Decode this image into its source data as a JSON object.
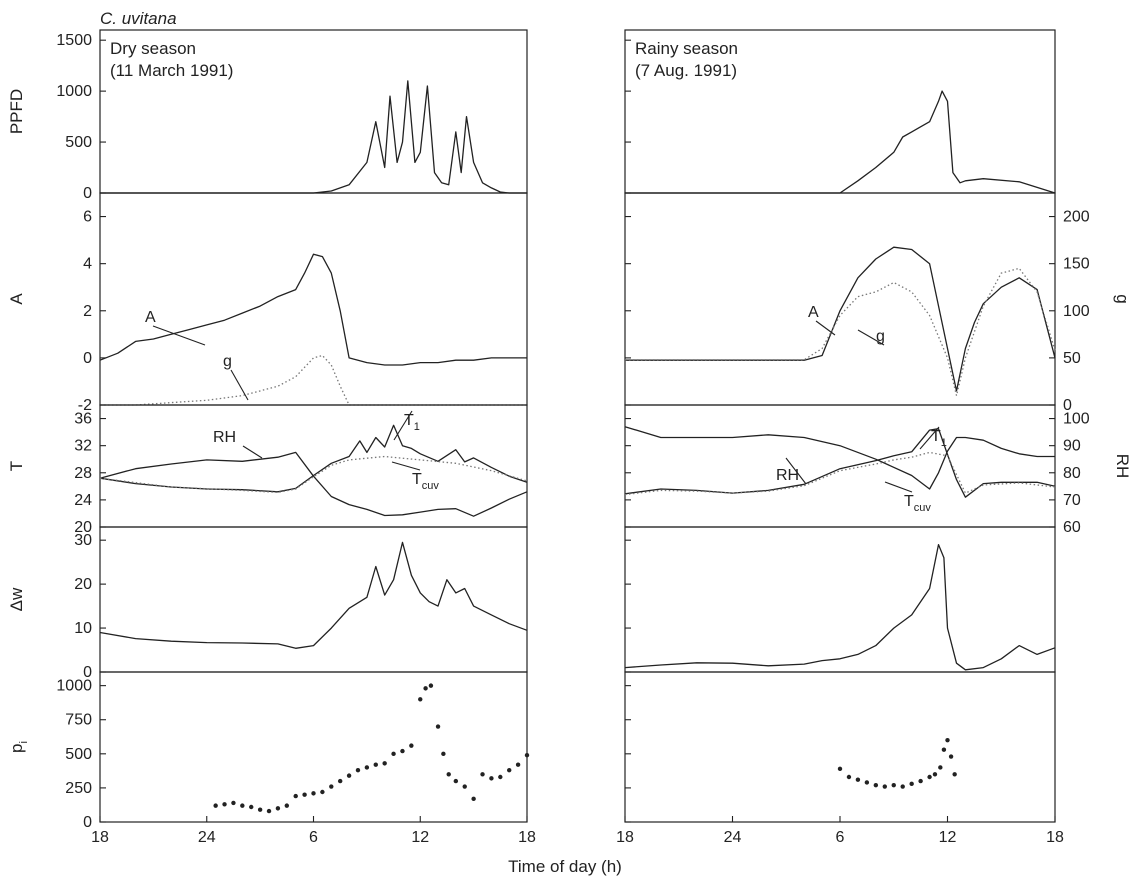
{
  "figure": {
    "species": "C. uvitana",
    "xlabel": "Time of day (h)"
  },
  "chart_data": [
    {
      "type": "line",
      "panel_title": "Dry season",
      "panel_subtitle": "(11 March 1991)",
      "x_ticks": [
        "18",
        "24",
        "6",
        "12",
        "18"
      ],
      "rows": [
        {
          "ylabel": "PPFD",
          "ylim": [
            0,
            1600
          ],
          "yticks": [
            0,
            500,
            1000,
            1500
          ],
          "series": [
            {
              "style": "solid",
              "x": [
                0,
                10,
                11,
                12,
                13,
                14,
                15,
                15.5,
                16,
                16.3,
                16.7,
                17,
                17.3,
                17.7,
                18,
                18.4,
                18.8,
                19.2,
                19.6,
                20,
                20.3,
                20.6,
                21,
                21.5,
                22,
                22.5,
                23,
                23.5,
                24
              ],
              "y": [
                0,
                0,
                0,
                0,
                20,
                80,
                300,
                700,
                250,
                950,
                300,
                500,
                1100,
                300,
                400,
                1050,
                200,
                100,
                80,
                600,
                200,
                750,
                300,
                100,
                50,
                10,
                0,
                0,
                0
              ]
            }
          ]
        },
        {
          "ylabel": "A",
          "ylim": [
            -2,
            7
          ],
          "yticks": [
            -2,
            0,
            2,
            4,
            6
          ],
          "annotations": [
            "A",
            "g"
          ],
          "series": [
            {
              "name": "A",
              "style": "solid",
              "x": [
                0,
                1,
                2,
                3,
                4,
                5,
                6,
                7,
                8,
                9,
                10,
                11,
                11.5,
                12,
                12.5,
                13,
                13.5,
                14,
                15,
                16,
                17,
                18,
                19,
                20,
                21,
                22,
                23,
                24
              ],
              "y": [
                -0.1,
                0.2,
                0.7,
                0.8,
                1.0,
                1.2,
                1.4,
                1.6,
                1.9,
                2.2,
                2.6,
                2.9,
                3.6,
                4.4,
                4.3,
                3.6,
                2.0,
                0.0,
                -0.2,
                -0.3,
                -0.3,
                -0.2,
                -0.2,
                -0.1,
                -0.1,
                0.0,
                0.0,
                0.0
              ]
            },
            {
              "name": "g",
              "style": "dotted",
              "x": [
                0,
                2,
                4,
                6,
                8,
                10,
                11,
                12,
                12.5,
                13,
                13.5,
                14,
                15,
                16,
                18,
                20,
                22,
                24
              ],
              "y": [
                -2.0,
                -2.0,
                -1.9,
                -1.8,
                -1.6,
                -1.2,
                -0.8,
                0.0,
                0.1,
                -0.3,
                -1.2,
                -2.0,
                -2.0,
                -2.0,
                -2.0,
                -2.0,
                -2.0,
                -2.0
              ]
            }
          ]
        },
        {
          "ylabel": "T",
          "ylim": [
            20,
            38
          ],
          "yticks": [
            20,
            24,
            28,
            32,
            36
          ],
          "annotations": [
            "RH",
            "T1",
            "Tcuv"
          ],
          "series": [
            {
              "name": "RH",
              "style": "solid",
              "x": [
                0,
                2,
                4,
                6,
                8,
                10,
                11,
                12,
                13,
                14,
                15,
                16,
                17,
                18,
                19,
                20,
                21,
                22,
                23,
                24
              ],
              "y": [
                27.2,
                28.6,
                29.3,
                29.9,
                29.7,
                30.3,
                31.0,
                27.5,
                24.5,
                23.3,
                22.6,
                21.7,
                21.8,
                22.2,
                22.6,
                22.7,
                21.6,
                22.8,
                24.1,
                25.2
              ]
            },
            {
              "name": "T1",
              "style": "solid",
              "x": [
                0,
                2,
                4,
                6,
                8,
                10,
                11,
                12,
                13,
                14,
                14.6,
                15,
                15.5,
                16,
                16.5,
                17,
                17.5,
                18,
                19,
                20,
                20.5,
                21,
                22,
                23,
                24
              ],
              "y": [
                27.2,
                26.4,
                25.9,
                25.6,
                25.5,
                25.2,
                25.7,
                27.6,
                29.4,
                30.4,
                32.7,
                31.0,
                33.2,
                31.8,
                35.0,
                32.0,
                31.6,
                30.8,
                29.7,
                31.4,
                29.6,
                30.2,
                28.8,
                27.5,
                26.6
              ]
            },
            {
              "name": "Tcuv",
              "style": "dotted",
              "x": [
                0,
                4,
                8,
                10,
                11,
                12,
                13,
                14,
                16,
                18,
                20,
                22,
                24
              ],
              "y": [
                27.2,
                25.9,
                25.4,
                25.1,
                25.6,
                27.4,
                29.1,
                29.9,
                30.4,
                29.9,
                29.4,
                28.3,
                26.8
              ]
            }
          ]
        },
        {
          "ylabel": "Δw",
          "ylim": [
            0,
            33
          ],
          "yticks": [
            0,
            10,
            20,
            30
          ],
          "series": [
            {
              "style": "solid",
              "x": [
                0,
                2,
                4,
                6,
                8,
                10,
                11,
                12,
                13,
                14,
                15,
                15.5,
                16,
                16.5,
                17,
                17.5,
                18,
                18.5,
                19,
                19.5,
                20,
                20.5,
                21,
                22,
                23,
                24
              ],
              "y": [
                9.0,
                7.6,
                7.0,
                6.7,
                6.6,
                6.4,
                5.4,
                6.0,
                10.0,
                14.5,
                17.0,
                24.0,
                17.5,
                21.0,
                29.5,
                22.0,
                18.0,
                16.0,
                15.0,
                21.0,
                18.0,
                19.0,
                15.0,
                13.0,
                11.0,
                9.5
              ]
            }
          ]
        },
        {
          "ylabel": "pi",
          "ylim": [
            0,
            1100
          ],
          "yticks": [
            0,
            250,
            500,
            750,
            1000
          ],
          "series": [
            {
              "style": "points",
              "x": [
                6.5,
                7,
                7.5,
                8,
                8.5,
                9,
                9.5,
                10,
                10.5,
                11,
                11.5,
                12,
                12.5,
                13,
                13.5,
                14,
                14.5,
                15,
                15.5,
                16,
                16.5,
                17,
                17.5,
                18,
                18.3,
                18.6,
                19,
                19.3,
                19.6,
                20,
                20.5,
                21,
                21.5,
                22,
                22.5,
                23,
                23.5,
                24
              ],
              "y": [
                120,
                130,
                140,
                120,
                110,
                90,
                80,
                100,
                120,
                190,
                200,
                210,
                220,
                260,
                300,
                340,
                380,
                400,
                420,
                430,
                500,
                520,
                560,
                900,
                980,
                1000,
                700,
                500,
                350,
                300,
                260,
                170,
                350,
                320,
                330,
                380,
                420,
                490
              ]
            }
          ]
        }
      ]
    },
    {
      "type": "line",
      "panel_title": "Rainy season",
      "panel_subtitle": "(7 Aug. 1991)",
      "x_ticks": [
        "18",
        "24",
        "6",
        "12",
        "18"
      ],
      "rows": [
        {
          "ylim": [
            0,
            1600
          ],
          "series": [
            {
              "style": "solid",
              "x": [
                0,
                11,
                12,
                13,
                14,
                15,
                15.5,
                16,
                16.5,
                17,
                17.5,
                17.7,
                18,
                18.3,
                18.7,
                19,
                20,
                22,
                24
              ],
              "y": [
                0,
                0,
                0,
                120,
                250,
                400,
                550,
                600,
                650,
                700,
                900,
                1000,
                900,
                200,
                100,
                120,
                140,
                110,
                0
              ]
            }
          ]
        },
        {
          "ylim": [
            -2,
            7
          ],
          "y2label": "g",
          "y2lim": [
            0,
            225
          ],
          "y2ticks": [
            0,
            50,
            100,
            150,
            200
          ],
          "annotations": [
            "A",
            "g"
          ],
          "series": [
            {
              "name": "A",
              "style": "solid",
              "x": [
                0,
                10,
                11,
                12,
                13,
                14,
                15,
                16,
                17,
                18,
                18.5,
                19,
                19.5,
                20,
                21,
                22,
                23,
                24
              ],
              "y": [
                -0.1,
                -0.1,
                0.1,
                2.0,
                3.4,
                4.2,
                4.7,
                4.6,
                4.0,
                0.4,
                -1.4,
                0.4,
                1.5,
                2.3,
                3.0,
                3.4,
                2.9,
                0.0
              ]
            },
            {
              "name": "g",
              "style": "dotted",
              "x": [
                0,
                10,
                11,
                12,
                13,
                14,
                15,
                16,
                17,
                18,
                18.5,
                19,
                20,
                21,
                22,
                23,
                24
              ],
              "y": [
                48,
                48,
                60,
                95,
                115,
                120,
                130,
                120,
                95,
                50,
                10,
                50,
                105,
                140,
                145,
                120,
                58
              ]
            }
          ]
        },
        {
          "ylim": [
            20,
            38
          ],
          "y2label": "RH",
          "y2lim": [
            60,
            105
          ],
          "y2ticks": [
            60,
            70,
            80,
            90,
            100
          ],
          "annotations": [
            "RH",
            "T1",
            "Tcuv"
          ],
          "series": [
            {
              "name": "RH",
              "style": "solid",
              "x": [
                0,
                2,
                4,
                6,
                8,
                10,
                12,
                14,
                16,
                17,
                17.5,
                18,
                18.5,
                19,
                20,
                21,
                22,
                23,
                24
              ],
              "y": [
                97,
                93,
                93,
                93,
                94,
                93,
                90,
                85,
                79,
                74,
                80,
                88,
                93,
                93,
                92,
                89,
                87,
                86,
                86
              ]
            },
            {
              "name": "T1",
              "style": "solid",
              "x": [
                0,
                2,
                4,
                6,
                8,
                10,
                12,
                14,
                15,
                16,
                17,
                17.5,
                18,
                18.5,
                19,
                20,
                21,
                22,
                23,
                24
              ],
              "y": [
                24.9,
                25.6,
                25.4,
                25.0,
                25.4,
                26.3,
                28.6,
                29.8,
                30.5,
                31.1,
                34.3,
                34.5,
                30.7,
                27.0,
                24.4,
                26.4,
                26.6,
                26.6,
                26.6,
                26.0
              ]
            },
            {
              "name": "Tcuv",
              "style": "dotted",
              "x": [
                0,
                2,
                4,
                6,
                8,
                10,
                12,
                14,
                15,
                16,
                17,
                18,
                19,
                20,
                22,
                24
              ],
              "y": [
                24.8,
                25.4,
                25.3,
                25.0,
                25.3,
                26.1,
                28.3,
                29.3,
                29.9,
                30.3,
                31.0,
                30.5,
                25.0,
                26.2,
                26.5,
                25.9
              ]
            }
          ]
        },
        {
          "ylim": [
            0,
            33
          ],
          "series": [
            {
              "style": "solid",
              "x": [
                0,
                2,
                4,
                6,
                8,
                10,
                11,
                12,
                13,
                14,
                15,
                16,
                17,
                17.5,
                17.8,
                18,
                18.5,
                19,
                20,
                21,
                22,
                23,
                24
              ],
              "y": [
                1.0,
                1.6,
                2.1,
                2.0,
                1.4,
                1.8,
                2.6,
                3.0,
                4.0,
                6.0,
                10.0,
                13.0,
                19.0,
                29.0,
                26.0,
                10.0,
                2.0,
                0.5,
                1.0,
                3.0,
                6.0,
                4.0,
                5.5
              ]
            }
          ]
        },
        {
          "ylim": [
            0,
            1100
          ],
          "series": [
            {
              "style": "points",
              "x": [
                12,
                12.5,
                13,
                13.5,
                14,
                14.5,
                15,
                15.5,
                16,
                16.5,
                17,
                17.3,
                17.6,
                17.8,
                18,
                18.2,
                18.4
              ],
              "y": [
                390,
                330,
                310,
                290,
                270,
                260,
                270,
                260,
                280,
                300,
                330,
                350,
                400,
                530,
                600,
                480,
                350
              ]
            }
          ]
        }
      ]
    }
  ]
}
